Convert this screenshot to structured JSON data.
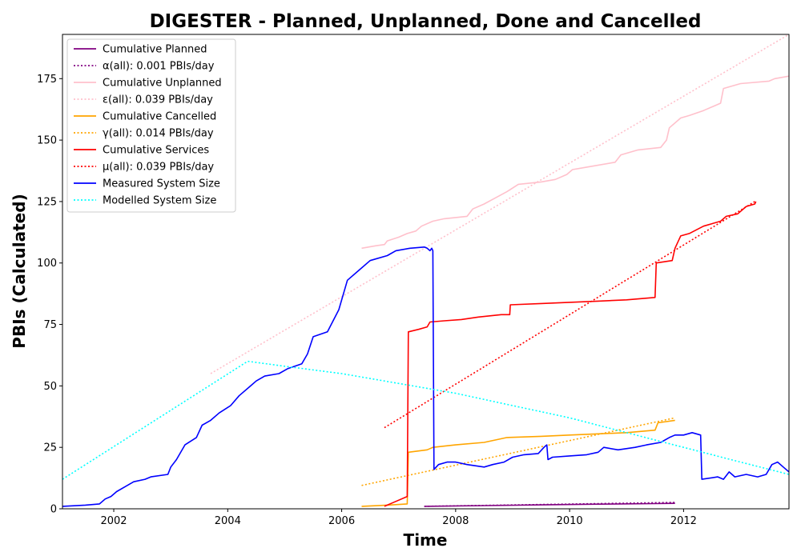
{
  "chart_data": {
    "type": "line",
    "title": "DIGESTER - Planned, Unplanned, Done  and Cancelled",
    "xlabel": "Time",
    "ylabel": "PBIs (Calculated)",
    "xlim": [
      2001.1,
      2013.85
    ],
    "ylim": [
      0,
      193
    ],
    "x_ticks": [
      2002,
      2004,
      2006,
      2008,
      2010,
      2012
    ],
    "y_ticks": [
      0,
      25,
      50,
      75,
      100,
      125,
      150,
      175
    ],
    "grid": false,
    "legend_position": "top-left",
    "series": [
      {
        "name": "Cumulative Planned",
        "color": "#800080",
        "style": "solid",
        "points": [
          [
            2007.45,
            1.0
          ],
          [
            2008.5,
            1.3
          ],
          [
            2009.5,
            1.6
          ],
          [
            2010.5,
            1.9
          ],
          [
            2011.5,
            2.1
          ],
          [
            2011.85,
            2.2
          ]
        ]
      },
      {
        "name": "α(all): 0.001 PBIs/day",
        "color": "#800080",
        "style": "dotted",
        "points": [
          [
            2007.45,
            1.0
          ],
          [
            2011.85,
            2.6
          ]
        ]
      },
      {
        "name": "Cumulative Unplanned",
        "color": "#ffc0cb",
        "style": "solid",
        "points": [
          [
            2006.35,
            106
          ],
          [
            2006.6,
            107
          ],
          [
            2006.75,
            107.5
          ],
          [
            2006.8,
            109
          ],
          [
            2007.0,
            110.5
          ],
          [
            2007.15,
            112
          ],
          [
            2007.3,
            113
          ],
          [
            2007.4,
            115
          ],
          [
            2007.6,
            117
          ],
          [
            2007.8,
            118
          ],
          [
            2008.2,
            119
          ],
          [
            2008.3,
            122
          ],
          [
            2008.5,
            124
          ],
          [
            2008.7,
            126.5
          ],
          [
            2008.9,
            129
          ],
          [
            2009.1,
            132
          ],
          [
            2009.5,
            133
          ],
          [
            2009.75,
            134
          ],
          [
            2009.95,
            136
          ],
          [
            2010.05,
            138
          ],
          [
            2010.3,
            139
          ],
          [
            2010.8,
            141
          ],
          [
            2010.9,
            144
          ],
          [
            2011.2,
            146
          ],
          [
            2011.6,
            147
          ],
          [
            2011.7,
            150
          ],
          [
            2011.75,
            155
          ],
          [
            2011.95,
            159
          ],
          [
            2012.1,
            160
          ],
          [
            2012.35,
            162
          ],
          [
            2012.65,
            165
          ],
          [
            2012.7,
            171
          ],
          [
            2013.0,
            173
          ],
          [
            2013.5,
            174
          ],
          [
            2013.6,
            175
          ],
          [
            2013.85,
            176
          ]
        ]
      },
      {
        "name": "ε(all): 0.039 PBIs/day",
        "color": "#ffc0cb",
        "style": "dotted",
        "points": [
          [
            2003.7,
            55
          ],
          [
            2013.85,
            193
          ]
        ]
      },
      {
        "name": "Cumulative Cancelled",
        "color": "#ffa500",
        "style": "solid",
        "points": [
          [
            2006.35,
            1
          ],
          [
            2006.8,
            1.5
          ],
          [
            2007.15,
            2
          ],
          [
            2007.17,
            23
          ],
          [
            2007.5,
            24
          ],
          [
            2007.6,
            25
          ],
          [
            2008.0,
            26
          ],
          [
            2008.5,
            27
          ],
          [
            2008.9,
            29
          ],
          [
            2009.5,
            29.5
          ],
          [
            2010.0,
            30
          ],
          [
            2010.5,
            30.5
          ],
          [
            2011.0,
            31
          ],
          [
            2011.5,
            32
          ],
          [
            2011.55,
            35
          ],
          [
            2011.85,
            36
          ]
        ]
      },
      {
        "name": "γ(all): 0.014 PBIs/day",
        "color": "#ffa500",
        "style": "dotted",
        "points": [
          [
            2006.35,
            9.5
          ],
          [
            2011.85,
            37
          ]
        ]
      },
      {
        "name": "Cumulative Services",
        "color": "#ff0000",
        "style": "solid",
        "points": [
          [
            2006.75,
            1
          ],
          [
            2006.9,
            2.5
          ],
          [
            2007.15,
            5
          ],
          [
            2007.17,
            72
          ],
          [
            2007.35,
            73
          ],
          [
            2007.5,
            74
          ],
          [
            2007.55,
            76
          ],
          [
            2007.8,
            76.5
          ],
          [
            2008.1,
            77
          ],
          [
            2008.4,
            78
          ],
          [
            2008.8,
            79
          ],
          [
            2008.95,
            79
          ],
          [
            2008.96,
            83
          ],
          [
            2009.5,
            83.5
          ],
          [
            2010.0,
            84
          ],
          [
            2010.5,
            84.5
          ],
          [
            2011.0,
            85
          ],
          [
            2011.5,
            86
          ],
          [
            2011.52,
            100
          ],
          [
            2011.8,
            101
          ],
          [
            2011.85,
            106
          ],
          [
            2011.95,
            111
          ],
          [
            2012.1,
            112
          ],
          [
            2012.35,
            115
          ],
          [
            2012.65,
            117
          ],
          [
            2012.75,
            119
          ],
          [
            2012.95,
            120
          ],
          [
            2013.1,
            123
          ],
          [
            2013.25,
            124
          ],
          [
            2013.27,
            125
          ]
        ]
      },
      {
        "name": "μ(all): 0.039 PBIs/day",
        "color": "#ff0000",
        "style": "dotted",
        "points": [
          [
            2006.75,
            33
          ],
          [
            2013.25,
            125
          ]
        ]
      },
      {
        "name": "Measured System Size",
        "color": "#0000ff",
        "style": "solid",
        "points": [
          [
            2001.1,
            1
          ],
          [
            2001.5,
            1.5
          ],
          [
            2001.75,
            2
          ],
          [
            2001.85,
            4
          ],
          [
            2001.95,
            5
          ],
          [
            2002.05,
            7
          ],
          [
            2002.2,
            9
          ],
          [
            2002.35,
            11
          ],
          [
            2002.55,
            12
          ],
          [
            2002.65,
            13
          ],
          [
            2002.95,
            14
          ],
          [
            2003.0,
            17
          ],
          [
            2003.1,
            20
          ],
          [
            2003.25,
            26
          ],
          [
            2003.45,
            29
          ],
          [
            2003.55,
            34
          ],
          [
            2003.7,
            36
          ],
          [
            2003.85,
            39
          ],
          [
            2004.05,
            42
          ],
          [
            2004.2,
            46
          ],
          [
            2004.4,
            50
          ],
          [
            2004.5,
            52
          ],
          [
            2004.65,
            54
          ],
          [
            2004.9,
            55
          ],
          [
            2005.05,
            57
          ],
          [
            2005.3,
            59
          ],
          [
            2005.4,
            63
          ],
          [
            2005.5,
            70
          ],
          [
            2005.75,
            72
          ],
          [
            2005.95,
            81
          ],
          [
            2006.1,
            93
          ],
          [
            2006.3,
            97
          ],
          [
            2006.5,
            101
          ],
          [
            2006.8,
            103
          ],
          [
            2006.95,
            105
          ],
          [
            2007.2,
            106
          ],
          [
            2007.45,
            106.5
          ],
          [
            2007.5,
            106
          ],
          [
            2007.55,
            105
          ],
          [
            2007.58,
            106
          ],
          [
            2007.6,
            105
          ],
          [
            2007.62,
            16
          ],
          [
            2007.7,
            18
          ],
          [
            2007.85,
            19
          ],
          [
            2008.0,
            19
          ],
          [
            2008.2,
            18
          ],
          [
            2008.5,
            17
          ],
          [
            2008.65,
            18
          ],
          [
            2008.85,
            19
          ],
          [
            2009.0,
            21
          ],
          [
            2009.2,
            22
          ],
          [
            2009.45,
            22.5
          ],
          [
            2009.55,
            25
          ],
          [
            2009.6,
            26
          ],
          [
            2009.62,
            20
          ],
          [
            2009.7,
            21
          ],
          [
            2010.0,
            21.5
          ],
          [
            2010.3,
            22
          ],
          [
            2010.5,
            23
          ],
          [
            2010.6,
            25
          ],
          [
            2010.85,
            24
          ],
          [
            2011.15,
            25
          ],
          [
            2011.35,
            26
          ],
          [
            2011.6,
            27
          ],
          [
            2011.75,
            29
          ],
          [
            2011.85,
            30
          ],
          [
            2012.0,
            30
          ],
          [
            2012.15,
            31
          ],
          [
            2012.3,
            30
          ],
          [
            2012.32,
            12
          ],
          [
            2012.6,
            13
          ],
          [
            2012.7,
            12
          ],
          [
            2012.8,
            15
          ],
          [
            2012.9,
            13
          ],
          [
            2013.1,
            14
          ],
          [
            2013.3,
            13
          ],
          [
            2013.45,
            14
          ],
          [
            2013.55,
            18
          ],
          [
            2013.65,
            19
          ],
          [
            2013.75,
            17
          ],
          [
            2013.85,
            15
          ]
        ]
      },
      {
        "name": "Modelled System Size",
        "color": "#00ffff",
        "style": "dotted",
        "points": [
          [
            2001.1,
            12
          ],
          [
            2004.35,
            60
          ],
          [
            2005.0,
            58
          ],
          [
            2006.0,
            55
          ],
          [
            2007.0,
            51
          ],
          [
            2008.0,
            47
          ],
          [
            2009.0,
            42
          ],
          [
            2010.0,
            37
          ],
          [
            2011.0,
            31
          ],
          [
            2012.0,
            25
          ],
          [
            2013.0,
            19
          ],
          [
            2013.85,
            14
          ]
        ]
      }
    ]
  }
}
